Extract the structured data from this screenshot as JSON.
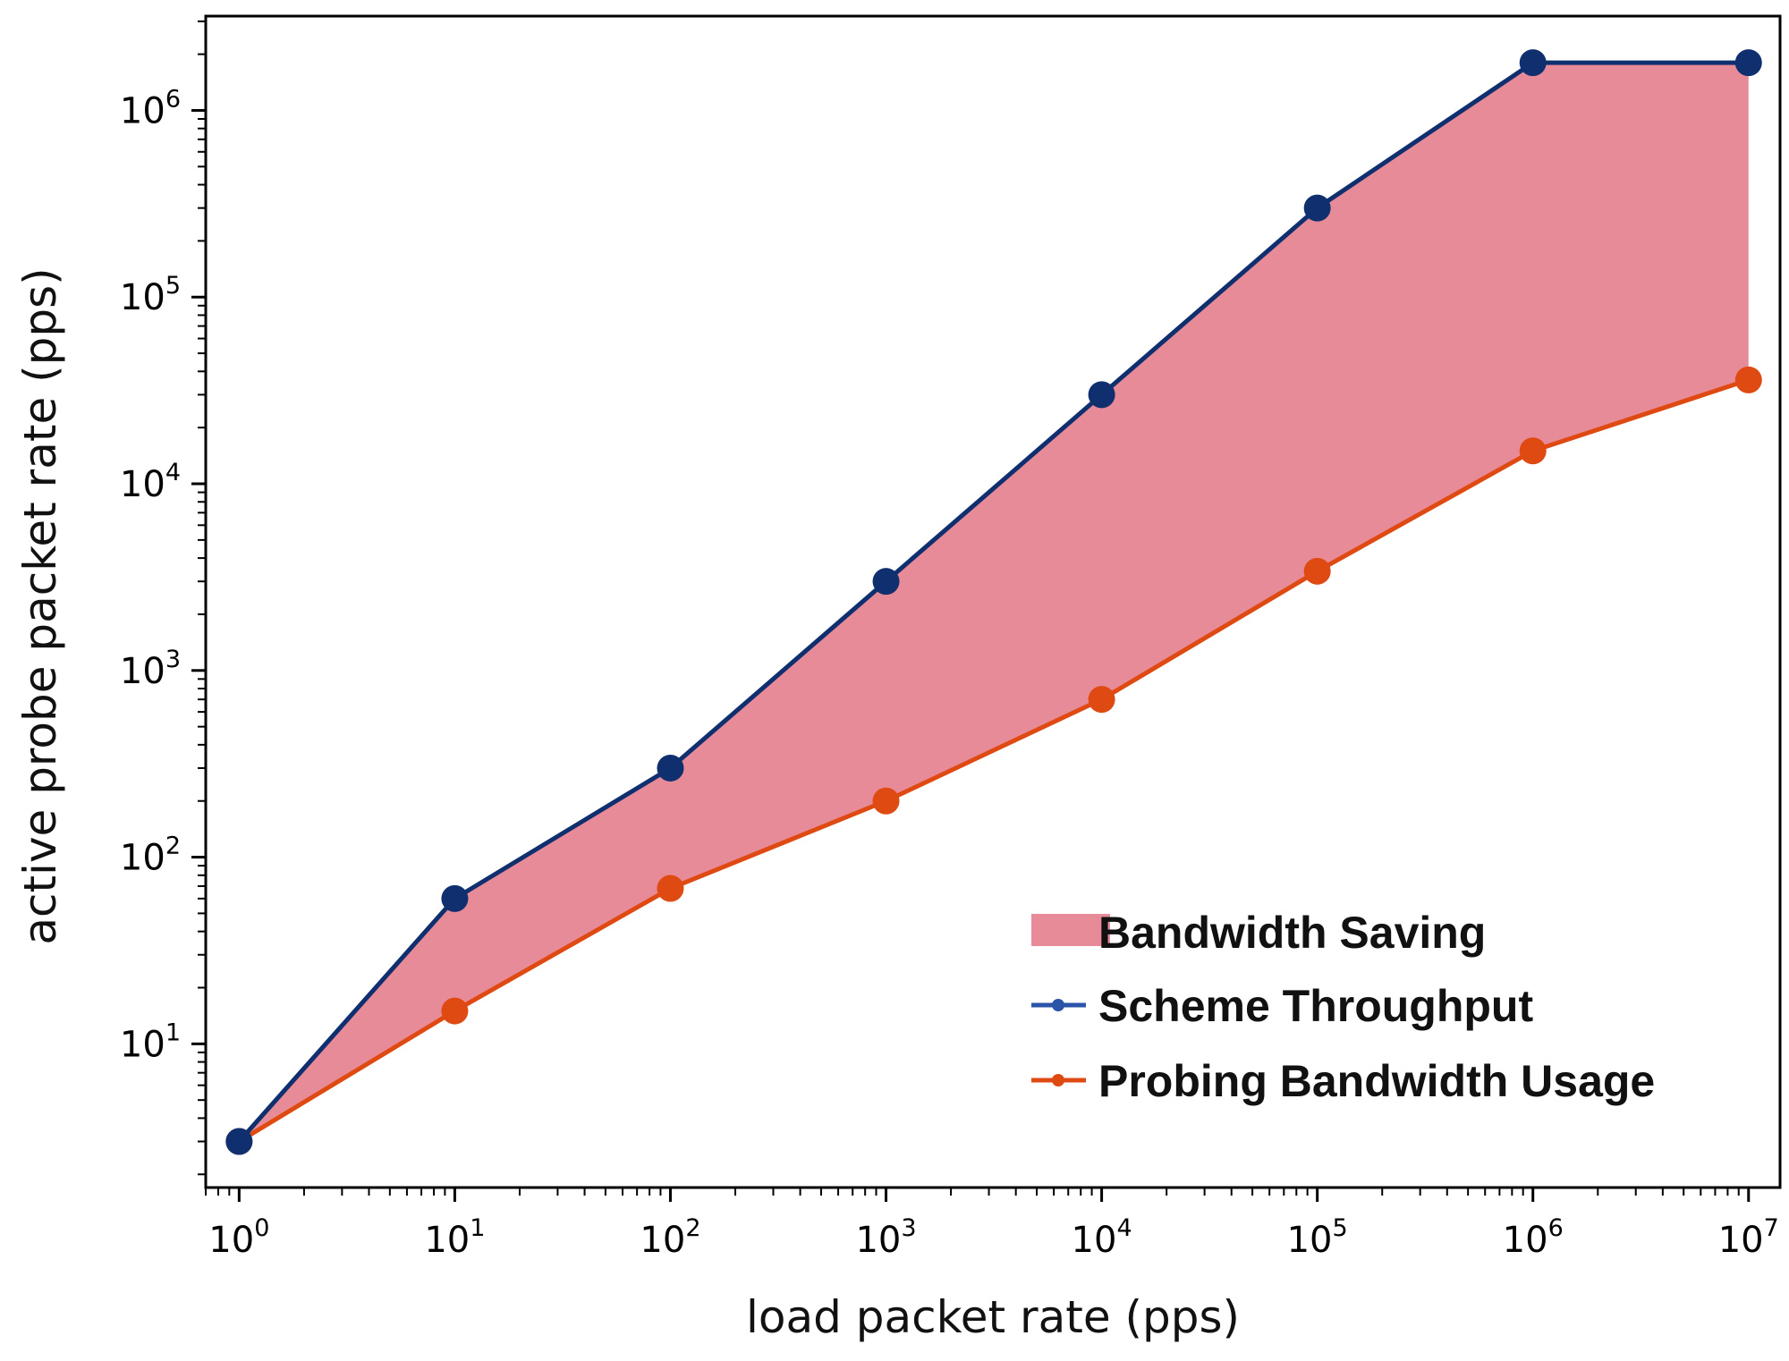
{
  "chart_data": {
    "type": "line",
    "xscale": "log",
    "yscale": "log",
    "x": [
      1,
      10,
      100,
      1000,
      10000,
      100000,
      1000000,
      10000000
    ],
    "series": [
      {
        "name": "Scheme Throughput",
        "color": "#0f2f6e",
        "values": [
          3,
          60,
          300,
          3000,
          30000,
          300000,
          1800000,
          1800000
        ]
      },
      {
        "name": "Probing Bandwidth Usage",
        "color": "#de4a12",
        "values": [
          3,
          15,
          68,
          200,
          700,
          3400,
          15000,
          36000
        ]
      }
    ],
    "fill_between": {
      "name": "Bandwidth Saving",
      "color": "#e88b98",
      "upper": "Scheme Throughput",
      "lower": "Probing Bandwidth Usage"
    },
    "xlabel": "load packet rate (pps)",
    "ylabel": "active probe packet rate (pps)",
    "xlim": [
      0.7,
      14000000
    ],
    "ylim": [
      1.7,
      3200000
    ],
    "x_ticks": [
      {
        "base": "10",
        "exp": "0"
      },
      {
        "base": "10",
        "exp": "1"
      },
      {
        "base": "10",
        "exp": "2"
      },
      {
        "base": "10",
        "exp": "3"
      },
      {
        "base": "10",
        "exp": "4"
      },
      {
        "base": "10",
        "exp": "5"
      },
      {
        "base": "10",
        "exp": "6"
      },
      {
        "base": "10",
        "exp": "7"
      }
    ],
    "y_ticks": [
      {
        "base": "10",
        "exp": "1"
      },
      {
        "base": "10",
        "exp": "2"
      },
      {
        "base": "10",
        "exp": "3"
      },
      {
        "base": "10",
        "exp": "4"
      },
      {
        "base": "10",
        "exp": "5"
      },
      {
        "base": "10",
        "exp": "6"
      }
    ],
    "legend": {
      "position": "lower-right",
      "entries": [
        "Bandwidth Saving",
        "Scheme Throughput",
        "Probing Bandwidth Usage"
      ]
    }
  }
}
